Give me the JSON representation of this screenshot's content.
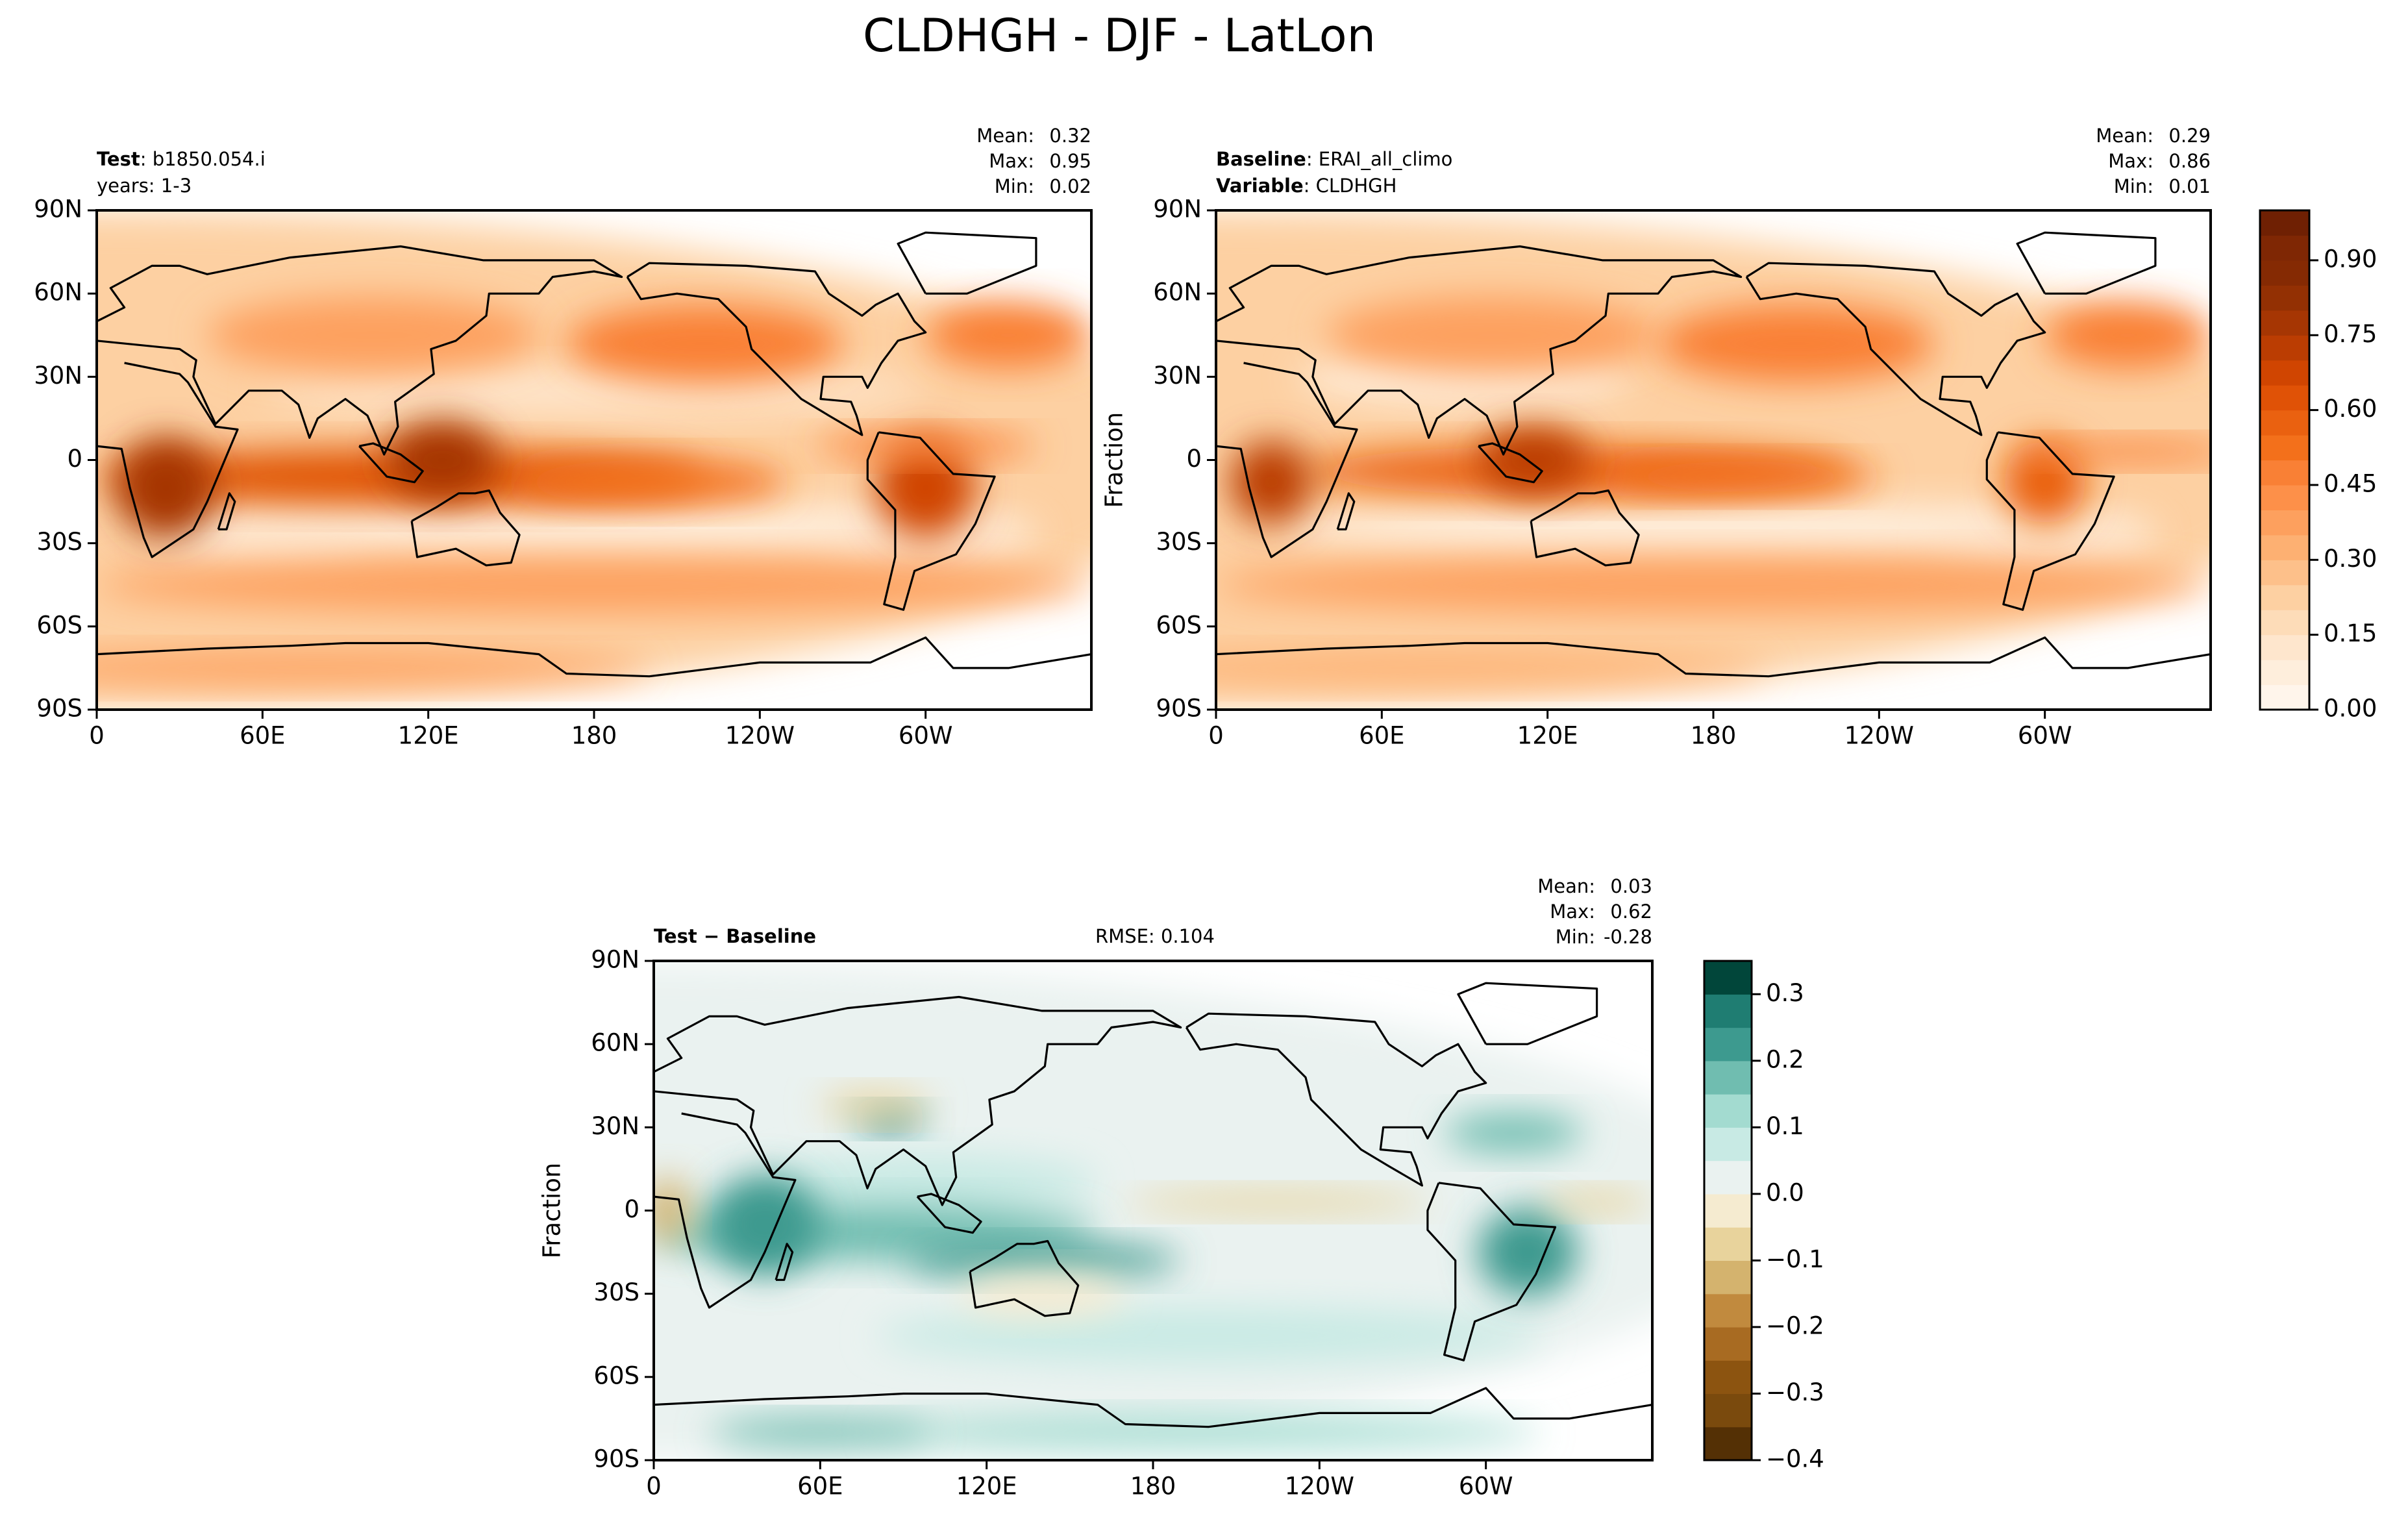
{
  "title": "CLDHGH - DJF - LatLon",
  "chart_data": [
    {
      "type": "contour",
      "header": [
        {
          "label": "Test",
          "text": ": b1850.054.i"
        },
        {
          "text": "years: 1-3"
        }
      ],
      "stats": [
        {
          "label": "Mean:",
          "value": 0.32
        },
        {
          "label": "Max:",
          "value": 0.95
        },
        {
          "label": "Min:",
          "value": 0.02
        }
      ],
      "xlim": [
        0,
        360
      ],
      "xticks": [
        0,
        {
          "value": 60,
          "label": "60E"
        },
        {
          "value": 120,
          "label": "120E"
        },
        180,
        {
          "value": 240,
          "label": "120W"
        },
        {
          "value": 300,
          "label": "60W"
        }
      ],
      "ylim": [
        -90,
        90
      ],
      "yticks": [
        {
          "value": 90,
          "label": "90N"
        },
        {
          "value": 60,
          "label": "60N"
        },
        {
          "value": 30,
          "label": "30N"
        },
        0,
        {
          "value": -30,
          "label": "30S"
        },
        {
          "value": -60,
          "label": "60S"
        },
        {
          "value": -90,
          "label": "90S"
        }
      ],
      "colors": [
        "#fff5eb",
        "#feeedc",
        "#fee6cd",
        "#fddcb8",
        "#fdd0a2",
        "#fdc08a",
        "#fdb072",
        "#fda05e",
        "#fd9049",
        "#f98035",
        "#f3701b",
        "#ea6110",
        "#e05206",
        "#d04501",
        "#bb3d02",
        "#a63603",
        "#933003",
        "#852a03",
        "#7f2704",
        "#6f2003"
      ]
    },
    {
      "type": "contour",
      "header": [
        {
          "label": "Baseline",
          "text": ": ERAI_all_climo"
        },
        {
          "label": "Variable",
          "text": ": CLDHGH"
        }
      ],
      "stats": [
        {
          "label": "Mean:",
          "value": 0.29
        },
        {
          "label": "Max:",
          "value": 0.86
        },
        {
          "label": "Min:",
          "value": 0.01
        }
      ],
      "ylabel": "Fraction",
      "xlim": [
        0,
        360
      ],
      "xticks": [
        0,
        {
          "value": 60,
          "label": "60E"
        },
        {
          "value": 120,
          "label": "120E"
        },
        180,
        {
          "value": 240,
          "label": "120W"
        },
        {
          "value": 300,
          "label": "60W"
        }
      ],
      "ylim": [
        -90,
        90
      ],
      "yticks": [
        {
          "value": 90,
          "label": "90N"
        },
        {
          "value": 60,
          "label": "60N"
        },
        {
          "value": 30,
          "label": "30N"
        },
        0,
        {
          "value": -30,
          "label": "30S"
        },
        {
          "value": -60,
          "label": "60S"
        },
        {
          "value": -90,
          "label": "90S"
        }
      ],
      "colors": [
        "#fff5eb",
        "#feeedc",
        "#fee6cd",
        "#fddcb8",
        "#fdd0a2",
        "#fdc08a",
        "#fdb072",
        "#fda05e",
        "#fd9049",
        "#f98035",
        "#f3701b",
        "#ea6110",
        "#e05206",
        "#d04501",
        "#bb3d02",
        "#a63603",
        "#933003",
        "#852a03",
        "#7f2704",
        "#6f2003"
      ],
      "colorbar": {
        "lim": [
          0,
          1
        ],
        "ticks": [
          {
            "value": 0,
            "label": "0.00"
          },
          0.15,
          {
            "value": 0.3,
            "label": "0.30"
          },
          0.45,
          {
            "value": 0.6,
            "label": "0.60"
          },
          0.75,
          {
            "value": 0.9,
            "label": "0.90"
          }
        ]
      }
    },
    {
      "type": "contour",
      "header": [
        {
          "label": "Test − Baseline"
        }
      ],
      "rmse": {
        "label": "RMSE:",
        "value": 0.104
      },
      "stats": [
        {
          "label": "Mean:",
          "value": 0.03
        },
        {
          "label": "Max:",
          "value": 0.62
        },
        {
          "label": "Min:",
          "value": -0.28
        }
      ],
      "ylabel": "Fraction",
      "xlim": [
        0,
        360
      ],
      "xticks": [
        0,
        {
          "value": 60,
          "label": "60E"
        },
        {
          "value": 120,
          "label": "120E"
        },
        180,
        {
          "value": 240,
          "label": "120W"
        },
        {
          "value": 300,
          "label": "60W"
        }
      ],
      "ylim": [
        -90,
        90
      ],
      "yticks": [
        {
          "value": 90,
          "label": "90N"
        },
        {
          "value": 60,
          "label": "60N"
        },
        {
          "value": 30,
          "label": "30N"
        },
        0,
        {
          "value": -30,
          "label": "30S"
        },
        {
          "value": -60,
          "label": "60S"
        },
        {
          "value": -90,
          "label": "90S"
        }
      ],
      "colors": [
        "#543005",
        "#7a4a0d",
        "#8c5410",
        "#a86b22",
        "#c18a3e",
        "#d4b36e",
        "#e8d39c",
        "#f5ebd0",
        "#eaf2f0",
        "#c8eae4",
        "#a3dbd0",
        "#70bdb0",
        "#3d9a8f",
        "#1f7d72",
        "#01463a"
      ],
      "colorbar": {
        "lim": [
          -0.4,
          0.35
        ],
        "ticks": [
          {
            "value": -0.4,
            "label": "−0.4"
          },
          {
            "value": -0.3,
            "label": "−0.3"
          },
          {
            "value": -0.2,
            "label": "−0.2"
          },
          {
            "value": -0.1,
            "label": "−0.1"
          },
          {
            "value": 0,
            "label": "0.0"
          },
          0.1,
          0.2,
          0.3
        ]
      }
    }
  ]
}
